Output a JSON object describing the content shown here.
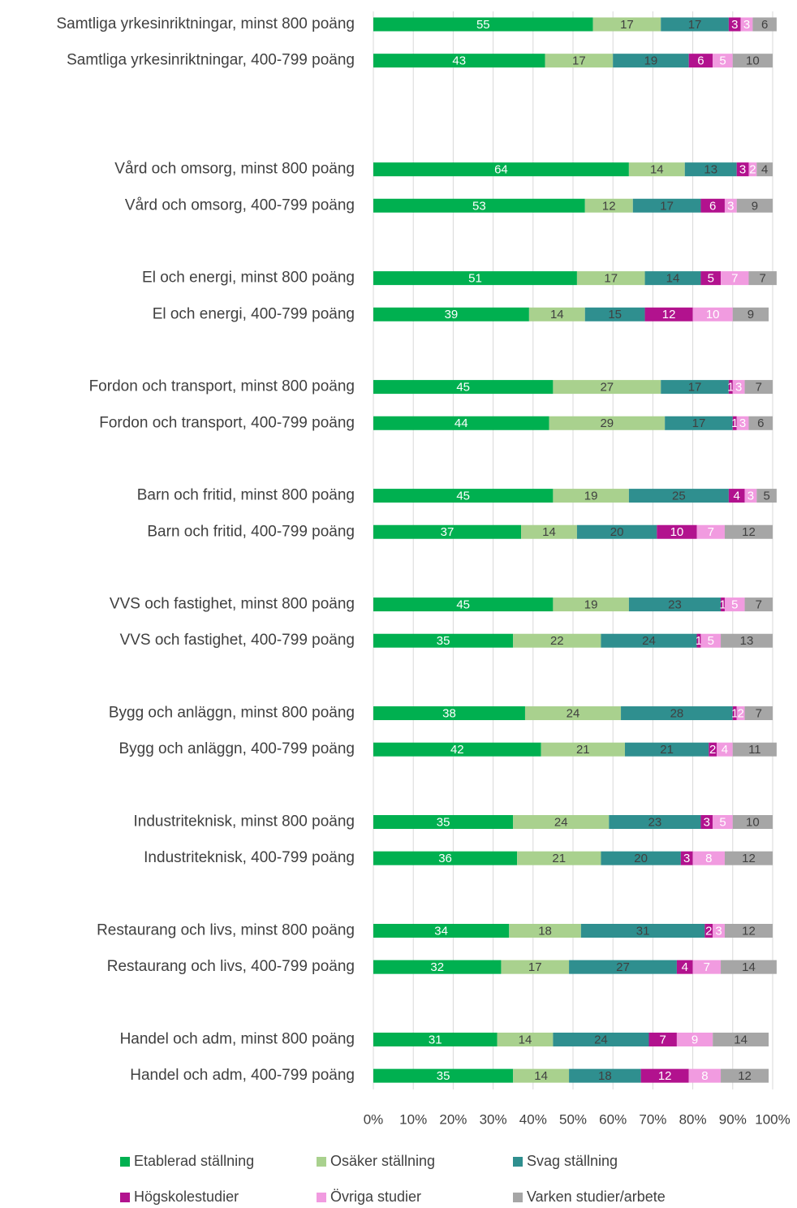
{
  "chart_data": {
    "type": "stacked_barh",
    "categories": [
      "Samtliga yrkesinriktningar, minst 800 poäng",
      "Samtliga yrkesinriktningar, 400-799 poäng",
      null,
      null,
      "Vård och omsorg, minst 800 poäng",
      "Vård och omsorg, 400-799 poäng",
      null,
      "El och energi, minst 800 poäng",
      "El och energi, 400-799 poäng",
      null,
      "Fordon och transport, minst 800 poäng",
      "Fordon och transport, 400-799 poäng",
      null,
      "Barn och fritid, minst 800 poäng",
      "Barn och fritid, 400-799 poäng",
      null,
      "VVS och fastighet, minst 800 poäng",
      "VVS och fastighet, 400-799 poäng",
      null,
      "Bygg och anläggn, minst 800 poäng",
      "Bygg och anläggn, 400-799 poäng",
      null,
      "Industriteknisk, minst 800 poäng",
      "Industriteknisk, 400-799 poäng",
      null,
      "Restaurang och livs, minst 800 poäng",
      "Restaurang och livs, 400-799 poäng",
      null,
      "Handel och adm, minst 800 poäng",
      "Handel och adm, 400-799 poäng"
    ],
    "series": [
      {
        "name": "Etablerad ställning",
        "color": "#00b050",
        "label_color": "#ffffff",
        "values": [
          55,
          43,
          null,
          null,
          64,
          53,
          null,
          51,
          39,
          null,
          45,
          44,
          null,
          45,
          37,
          null,
          45,
          35,
          null,
          38,
          42,
          null,
          35,
          36,
          null,
          34,
          32,
          null,
          31,
          35
        ]
      },
      {
        "name": "Osäker ställning",
        "color": "#a9d18e",
        "label_color": "#404040",
        "values": [
          17,
          17,
          null,
          null,
          14,
          12,
          null,
          17,
          14,
          null,
          27,
          29,
          null,
          19,
          14,
          null,
          19,
          22,
          null,
          24,
          21,
          null,
          24,
          21,
          null,
          18,
          17,
          null,
          14,
          14
        ]
      },
      {
        "name": "Svag ställning",
        "color": "#2f8f8f",
        "label_color": "#404040",
        "values": [
          17,
          19,
          null,
          null,
          13,
          17,
          null,
          14,
          15,
          null,
          17,
          17,
          null,
          25,
          20,
          null,
          23,
          24,
          null,
          28,
          21,
          null,
          23,
          20,
          null,
          31,
          27,
          null,
          24,
          18
        ]
      },
      {
        "name": "Högskolestudier",
        "color": "#b2128e",
        "label_color": "#ffffff",
        "values": [
          3,
          6,
          null,
          null,
          3,
          6,
          null,
          5,
          12,
          null,
          1,
          1,
          null,
          4,
          10,
          null,
          1,
          1,
          null,
          1,
          2,
          null,
          3,
          3,
          null,
          2,
          4,
          null,
          7,
          12
        ]
      },
      {
        "name": "Övriga studier",
        "color": "#f19be0",
        "label_color": "#ffffff",
        "values": [
          3,
          5,
          null,
          null,
          2,
          3,
          null,
          7,
          10,
          null,
          3,
          3,
          null,
          3,
          7,
          null,
          5,
          5,
          null,
          2,
          4,
          null,
          5,
          8,
          null,
          3,
          7,
          null,
          9,
          8
        ]
      },
      {
        "name": "Varken studier/arbete",
        "color": "#a6a6a6",
        "label_color": "#404040",
        "values": [
          6,
          10,
          null,
          null,
          4,
          9,
          null,
          7,
          9,
          null,
          7,
          6,
          null,
          5,
          12,
          null,
          7,
          13,
          null,
          7,
          11,
          null,
          10,
          12,
          null,
          12,
          14,
          null,
          14,
          12
        ]
      }
    ],
    "xlim": [
      0,
      100
    ],
    "xticks": [
      {
        "value": 0,
        "label": "0%"
      },
      {
        "value": 10,
        "label": "10%"
      },
      {
        "value": 20,
        "label": "20%"
      },
      {
        "value": 30,
        "label": "30%"
      },
      {
        "value": 40,
        "label": "40%"
      },
      {
        "value": 50,
        "label": "50%"
      },
      {
        "value": 60,
        "label": "60%"
      },
      {
        "value": 70,
        "label": "70%"
      },
      {
        "value": 80,
        "label": "80%"
      },
      {
        "value": 90,
        "label": "90%"
      },
      {
        "value": 100,
        "label": "100%"
      }
    ],
    "grid": true,
    "legend": "bottom"
  }
}
